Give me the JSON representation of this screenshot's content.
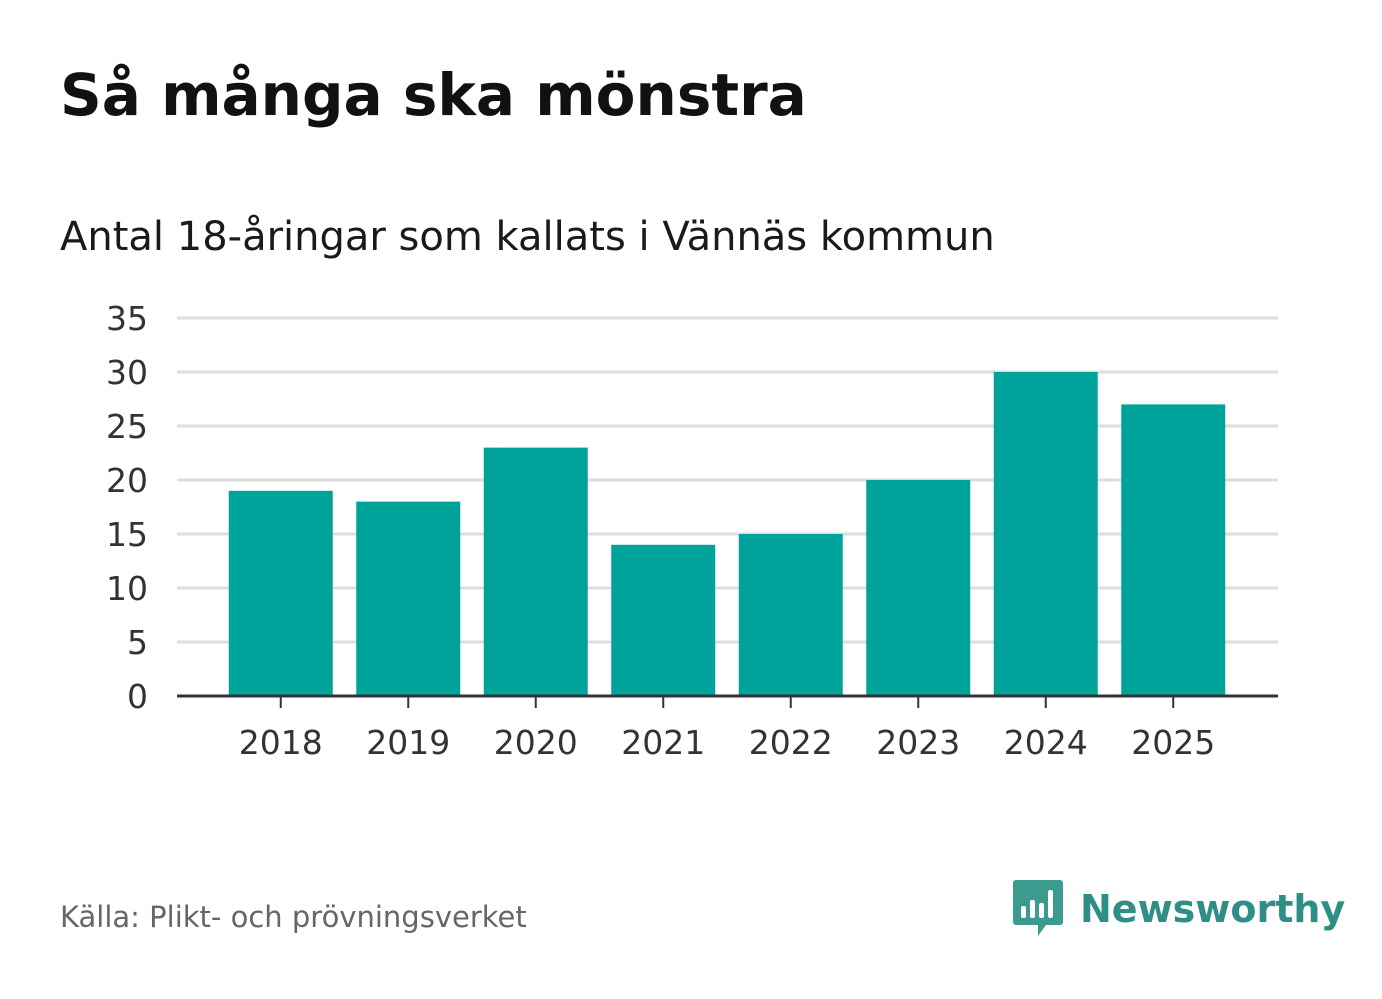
{
  "header": {
    "title": "Så många ska mönstra",
    "subtitle": "Antal 18-åringar som kallats i Vännäs kommun"
  },
  "footer": {
    "source": "Källa: Plikt- och prövningsverket",
    "brand": "Newsworthy",
    "brand_icon": "bar-chart-speech-bubble-icon"
  },
  "colors": {
    "bar": "#00a39a",
    "grid": "#dddddd",
    "axis": "#333333",
    "tick_text": "#333333",
    "brand": "#2f8f87"
  },
  "chart_data": {
    "type": "bar",
    "title": "Så många ska mönstra",
    "subtitle": "Antal 18-åringar som kallats i Vännäs kommun",
    "xlabel": "",
    "ylabel": "",
    "categories": [
      "2018",
      "2019",
      "2020",
      "2021",
      "2022",
      "2023",
      "2024",
      "2025"
    ],
    "values": [
      19,
      18,
      23,
      14,
      15,
      20,
      30,
      27
    ],
    "ylim": [
      0,
      35
    ],
    "yticks": [
      0,
      5,
      10,
      15,
      20,
      25,
      30,
      35
    ],
    "grid": true,
    "legend": "none"
  }
}
